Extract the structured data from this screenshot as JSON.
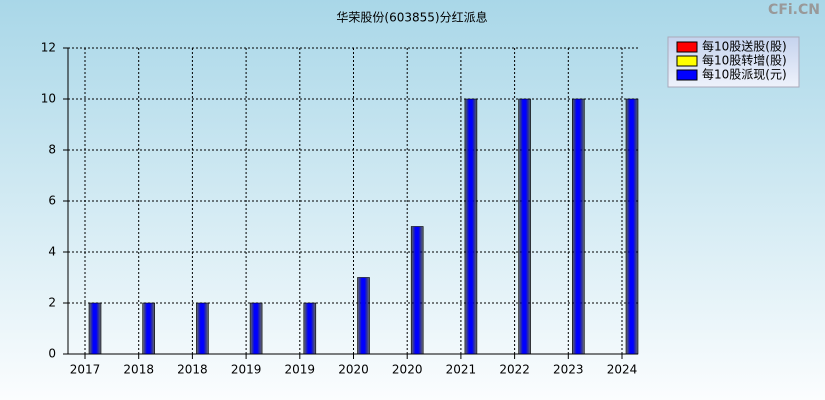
{
  "watermark": "CFi.CN",
  "chart_data": {
    "type": "bar",
    "title": "华荣股份(603855)分红派息",
    "categories": [
      "2017",
      "2018",
      "2018",
      "2019",
      "2019",
      "2020",
      "2020",
      "2021",
      "2022",
      "2023",
      "2024"
    ],
    "series": [
      {
        "name": "每10股送股(股)",
        "color": "#ff0000",
        "values": [
          0,
          0,
          0,
          0,
          0,
          0,
          0,
          0,
          0,
          0,
          0
        ]
      },
      {
        "name": "每10股转增(股)",
        "color": "#ffff00",
        "values": [
          0,
          0,
          0,
          0,
          0,
          0,
          0,
          0,
          0,
          0,
          0
        ]
      },
      {
        "name": "每10股派现(元)",
        "color": "#0000ff",
        "values": [
          2,
          2,
          2,
          2,
          2,
          3,
          5,
          10,
          10,
          10,
          10
        ]
      }
    ],
    "ylim": [
      0,
      12
    ],
    "yticks": [
      0,
      2,
      4,
      6,
      8,
      10,
      12
    ],
    "grid": true,
    "legend": "right"
  }
}
